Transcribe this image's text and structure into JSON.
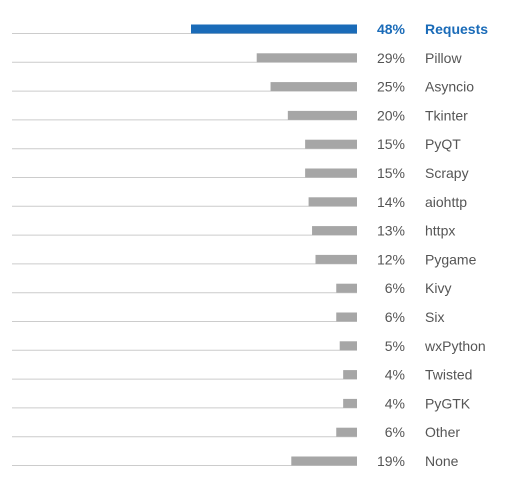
{
  "chart_data": {
    "type": "bar",
    "orientation": "horizontal",
    "categories": [
      "Requests",
      "Pillow",
      "Asyncio",
      "Tkinter",
      "PyQT",
      "Scrapy",
      "aiohttp",
      "httpx",
      "Pygame",
      "Kivy",
      "Six",
      "wxPython",
      "Twisted",
      "PyGTK",
      "Other",
      "None"
    ],
    "values": [
      48,
      29,
      25,
      20,
      15,
      15,
      14,
      13,
      12,
      6,
      6,
      5,
      4,
      4,
      6,
      19
    ],
    "value_labels": [
      "48%",
      "29%",
      "25%",
      "20%",
      "15%",
      "15%",
      "14%",
      "13%",
      "12%",
      "6%",
      "6%",
      "5%",
      "4%",
      "4%",
      "6%",
      "19%"
    ],
    "highlight_index": 0,
    "title": "",
    "xlabel": "",
    "ylabel": "",
    "xlim": [
      0,
      48
    ],
    "grid": false,
    "legend": "none",
    "colors": {
      "highlight": "#1a6bb8",
      "bar": "#a6a6a6",
      "baseline": "#cccccc",
      "text": "#555555"
    }
  }
}
